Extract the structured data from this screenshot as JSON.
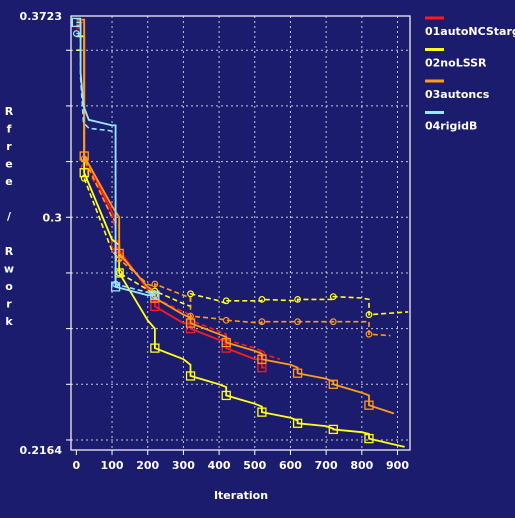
{
  "chart_data": {
    "type": "line",
    "title": "",
    "xlabel": "Iteration",
    "ylabel": "Rfree / Rwork",
    "xlim": [
      -15,
      935
    ],
    "ylim": [
      0.2164,
      0.3723
    ],
    "x_ticks": [
      0,
      100,
      200,
      300,
      400,
      500,
      600,
      700,
      800,
      900
    ],
    "y_tick_labels": [
      "0.3723",
      "0.3",
      "0.2164"
    ],
    "y_tick_values": [
      0.3723,
      0.3,
      0.2164
    ],
    "y_minor_ticks": [
      0.36,
      0.34,
      0.32,
      0.3,
      0.28,
      0.26,
      0.24,
      0.22
    ],
    "grid": true,
    "legend_position": "right",
    "background_color": "#1c1c6e",
    "frame_color": "#ffffff",
    "series": [
      {
        "name": "01autoNCStarg",
        "color": "#ff1a1a",
        "rfree": [
          [
            0,
            0.37
          ],
          [
            22,
            0.37
          ],
          [
            22,
            0.322
          ],
          [
            100,
            0.302
          ],
          [
            110,
            0.299
          ],
          [
            110,
            0.29
          ],
          [
            200,
            0.274
          ],
          [
            220,
            0.272
          ],
          [
            220,
            0.268
          ],
          [
            300,
            0.262
          ],
          [
            320,
            0.262
          ],
          [
            320,
            0.26
          ],
          [
            400,
            0.256
          ],
          [
            420,
            0.256
          ],
          [
            420,
            0.253
          ],
          [
            500,
            0.249
          ],
          [
            520,
            0.249
          ],
          [
            520,
            0.246
          ],
          [
            528,
            0.246
          ]
        ],
        "rwork": [
          [
            0,
            0.368
          ],
          [
            22,
            0.368
          ],
          [
            22,
            0.318
          ],
          [
            60,
            0.311
          ],
          [
            100,
            0.3
          ],
          [
            110,
            0.296
          ],
          [
            110,
            0.288
          ],
          [
            200,
            0.275
          ],
          [
            220,
            0.274
          ],
          [
            220,
            0.271
          ],
          [
            300,
            0.266
          ],
          [
            320,
            0.265
          ],
          [
            320,
            0.263
          ],
          [
            400,
            0.259
          ],
          [
            420,
            0.258
          ],
          [
            420,
            0.256
          ],
          [
            500,
            0.253
          ],
          [
            520,
            0.252
          ],
          [
            520,
            0.251
          ],
          [
            570,
            0.249
          ]
        ],
        "rfree_markers": [
          [
            22,
            0.322
          ],
          [
            110,
            0.29
          ],
          [
            220,
            0.268
          ],
          [
            320,
            0.26
          ],
          [
            420,
            0.253
          ],
          [
            520,
            0.246
          ]
        ],
        "rwork_markers": [
          [
            22,
            0.318
          ],
          [
            110,
            0.288
          ],
          [
            220,
            0.271
          ],
          [
            320,
            0.263
          ],
          [
            420,
            0.256
          ],
          [
            520,
            0.251
          ]
        ]
      },
      {
        "name": "02noLSSR",
        "color": "#ffff1a",
        "rfree": [
          [
            0,
            0.365
          ],
          [
            22,
            0.365
          ],
          [
            22,
            0.316
          ],
          [
            100,
            0.292
          ],
          [
            120,
            0.29
          ],
          [
            120,
            0.28
          ],
          [
            200,
            0.263
          ],
          [
            220,
            0.26
          ],
          [
            220,
            0.253
          ],
          [
            300,
            0.249
          ],
          [
            320,
            0.247
          ],
          [
            320,
            0.243
          ],
          [
            400,
            0.24
          ],
          [
            420,
            0.239
          ],
          [
            420,
            0.236
          ],
          [
            500,
            0.233
          ],
          [
            520,
            0.232
          ],
          [
            520,
            0.23
          ],
          [
            600,
            0.228
          ],
          [
            620,
            0.227
          ],
          [
            620,
            0.226
          ],
          [
            700,
            0.225
          ],
          [
            720,
            0.224
          ],
          [
            720,
            0.2238
          ],
          [
            800,
            0.2228
          ],
          [
            820,
            0.2222
          ],
          [
            820,
            0.2205
          ],
          [
            920,
            0.2175
          ]
        ],
        "rwork": [
          [
            0,
            0.36
          ],
          [
            22,
            0.36
          ],
          [
            22,
            0.314
          ],
          [
            100,
            0.288
          ],
          [
            120,
            0.285
          ],
          [
            120,
            0.28
          ],
          [
            200,
            0.274
          ],
          [
            220,
            0.272
          ],
          [
            220,
            0.2735
          ],
          [
            300,
            0.269
          ],
          [
            320,
            0.268
          ],
          [
            320,
            0.2725
          ],
          [
            400,
            0.27
          ],
          [
            420,
            0.269
          ],
          [
            420,
            0.27
          ],
          [
            520,
            0.27
          ],
          [
            520,
            0.2705
          ],
          [
            620,
            0.27
          ],
          [
            620,
            0.2705
          ],
          [
            720,
            0.2705
          ],
          [
            720,
            0.2715
          ],
          [
            800,
            0.271
          ],
          [
            820,
            0.2705
          ],
          [
            820,
            0.265
          ],
          [
            930,
            0.266
          ]
        ],
        "rfree_markers": [
          [
            22,
            0.316
          ],
          [
            120,
            0.28
          ],
          [
            220,
            0.253
          ],
          [
            320,
            0.243
          ],
          [
            420,
            0.236
          ],
          [
            520,
            0.23
          ],
          [
            620,
            0.226
          ],
          [
            720,
            0.2238
          ],
          [
            820,
            0.2205
          ]
        ],
        "rwork_markers": [
          [
            22,
            0.314
          ],
          [
            120,
            0.28
          ],
          [
            220,
            0.2735
          ],
          [
            320,
            0.2725
          ],
          [
            420,
            0.27
          ],
          [
            520,
            0.2705
          ],
          [
            620,
            0.2705
          ],
          [
            720,
            0.2715
          ],
          [
            820,
            0.265
          ]
        ]
      },
      {
        "name": "03autoncs",
        "color": "#ff9a1a",
        "rfree": [
          [
            0,
            0.371
          ],
          [
            22,
            0.371
          ],
          [
            22,
            0.322
          ],
          [
            100,
            0.304
          ],
          [
            120,
            0.3
          ],
          [
            120,
            0.287
          ],
          [
            200,
            0.275
          ],
          [
            220,
            0.273
          ],
          [
            220,
            0.271
          ],
          [
            300,
            0.265
          ],
          [
            320,
            0.264
          ],
          [
            320,
            0.262
          ],
          [
            400,
            0.258
          ],
          [
            420,
            0.257
          ],
          [
            420,
            0.255
          ],
          [
            500,
            0.252
          ],
          [
            520,
            0.251
          ],
          [
            520,
            0.249
          ],
          [
            600,
            0.247
          ],
          [
            620,
            0.246
          ],
          [
            620,
            0.244
          ],
          [
            700,
            0.242
          ],
          [
            720,
            0.241
          ],
          [
            720,
            0.24
          ],
          [
            800,
            0.237
          ],
          [
            820,
            0.236
          ],
          [
            820,
            0.2325
          ],
          [
            890,
            0.2295
          ]
        ],
        "rwork": [
          [
            0,
            0.369
          ],
          [
            22,
            0.369
          ],
          [
            22,
            0.321
          ],
          [
            100,
            0.3
          ],
          [
            120,
            0.297
          ],
          [
            120,
            0.285
          ],
          [
            200,
            0.276
          ],
          [
            220,
            0.275
          ],
          [
            220,
            0.276
          ],
          [
            300,
            0.272
          ],
          [
            320,
            0.271
          ],
          [
            320,
            0.2645
          ],
          [
            400,
            0.2635
          ],
          [
            420,
            0.263
          ],
          [
            420,
            0.263
          ],
          [
            520,
            0.262
          ],
          [
            520,
            0.2625
          ],
          [
            620,
            0.2625
          ],
          [
            620,
            0.2625
          ],
          [
            720,
            0.2625
          ],
          [
            720,
            0.2625
          ],
          [
            800,
            0.2625
          ],
          [
            820,
            0.2625
          ],
          [
            820,
            0.258
          ],
          [
            880,
            0.2575
          ]
        ],
        "rfree_markers": [
          [
            22,
            0.322
          ],
          [
            120,
            0.287
          ],
          [
            220,
            0.271
          ],
          [
            320,
            0.262
          ],
          [
            420,
            0.255
          ],
          [
            520,
            0.249
          ],
          [
            620,
            0.244
          ],
          [
            720,
            0.24
          ],
          [
            820,
            0.2325
          ]
        ],
        "rwork_markers": [
          [
            22,
            0.321
          ],
          [
            120,
            0.285
          ],
          [
            220,
            0.276
          ],
          [
            320,
            0.2645
          ],
          [
            420,
            0.263
          ],
          [
            520,
            0.2625
          ],
          [
            620,
            0.2625
          ],
          [
            720,
            0.2625
          ],
          [
            820,
            0.258
          ]
        ]
      },
      {
        "name": "04rigidB",
        "color": "#99e6ff",
        "rfree": [
          [
            0,
            0.37
          ],
          [
            12,
            0.37
          ],
          [
            12,
            0.352
          ],
          [
            20,
            0.34
          ],
          [
            35,
            0.335
          ],
          [
            100,
            0.333
          ],
          [
            110,
            0.333
          ],
          [
            110,
            0.275
          ],
          [
            200,
            0.272
          ],
          [
            220,
            0.272
          ]
        ],
        "rwork": [
          [
            0,
            0.366
          ],
          [
            12,
            0.366
          ],
          [
            12,
            0.35
          ],
          [
            20,
            0.334
          ],
          [
            35,
            0.332
          ],
          [
            100,
            0.331
          ],
          [
            110,
            0.331
          ],
          [
            110,
            0.276
          ],
          [
            200,
            0.273
          ],
          [
            220,
            0.272
          ]
        ],
        "rfree_markers": [
          [
            0,
            0.37
          ],
          [
            110,
            0.275
          ],
          [
            220,
            0.272
          ]
        ],
        "rwork_markers": [
          [
            0,
            0.366
          ],
          [
            110,
            0.276
          ],
          [
            220,
            0.272
          ]
        ]
      }
    ]
  }
}
